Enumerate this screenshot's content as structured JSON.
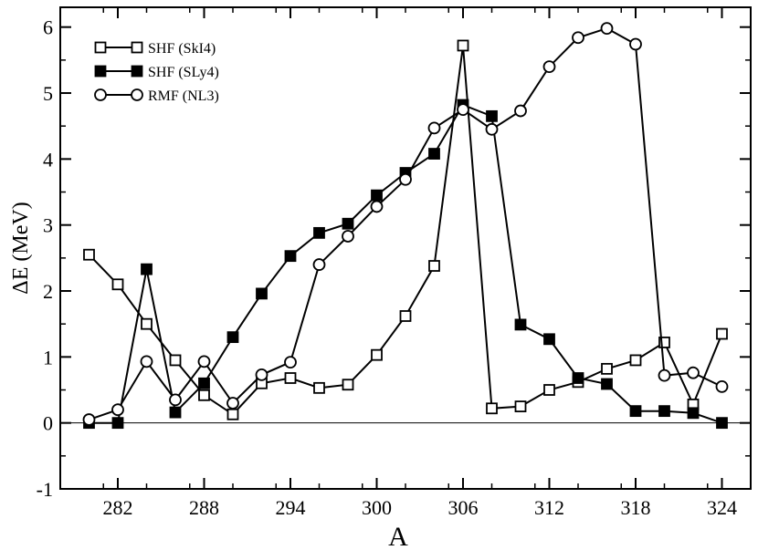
{
  "chart_data": {
    "type": "line",
    "title": "",
    "xlabel": "A",
    "ylabel": "ΔE (MeV)",
    "xlim": [
      278,
      326
    ],
    "ylim": [
      -1,
      6.3
    ],
    "xticks": [
      282,
      288,
      294,
      300,
      306,
      312,
      318,
      324
    ],
    "yticks": [
      -1,
      0,
      1,
      2,
      3,
      4,
      5,
      6
    ],
    "grid": false,
    "legend_position": "top-left",
    "zero_line": 0,
    "series": [
      {
        "name": "SHF (SkI4)",
        "marker": "open-square",
        "x": [
          280,
          282,
          284,
          286,
          288,
          290,
          292,
          294,
          296,
          298,
          300,
          302,
          304,
          306,
          308,
          310,
          312,
          314,
          316,
          318,
          320,
          322,
          324
        ],
        "y": [
          2.55,
          2.1,
          1.5,
          0.95,
          0.42,
          0.13,
          0.6,
          0.68,
          0.53,
          0.58,
          1.03,
          1.62,
          2.38,
          5.72,
          0.22,
          0.25,
          0.5,
          0.62,
          0.82,
          0.95,
          1.22,
          0.28,
          1.35
        ]
      },
      {
        "name": "SHF (SLy4)",
        "marker": "filled-square",
        "x": [
          280,
          282,
          284,
          286,
          288,
          290,
          292,
          294,
          296,
          298,
          300,
          302,
          304,
          306,
          308,
          310,
          312,
          314,
          316,
          318,
          320,
          322,
          324
        ],
        "y": [
          0.0,
          0.0,
          2.33,
          0.16,
          0.6,
          1.3,
          1.96,
          2.53,
          2.88,
          3.02,
          3.45,
          3.79,
          4.08,
          4.82,
          4.65,
          1.49,
          1.27,
          0.68,
          0.59,
          0.18,
          0.18,
          0.15,
          0.0
        ]
      },
      {
        "name": "RMF (NL3)",
        "marker": "open-circle",
        "x": [
          280,
          282,
          284,
          286,
          288,
          290,
          292,
          294,
          296,
          298,
          300,
          302,
          304,
          306,
          308,
          310,
          312,
          314,
          316,
          318,
          320,
          322,
          324
        ],
        "y": [
          0.05,
          0.2,
          0.93,
          0.35,
          0.93,
          0.3,
          0.73,
          0.92,
          2.4,
          2.83,
          3.28,
          3.69,
          4.47,
          4.75,
          4.45,
          4.73,
          5.4,
          5.84,
          5.98,
          5.74,
          0.72,
          0.76,
          0.55
        ]
      }
    ]
  }
}
